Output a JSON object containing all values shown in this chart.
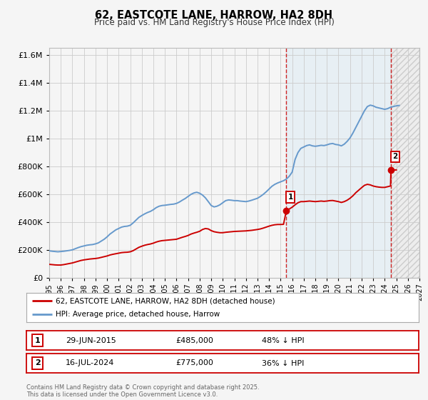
{
  "title": "62, EASTCOTE LANE, HARROW, HA2 8DH",
  "subtitle": "Price paid vs. HM Land Registry's House Price Index (HPI)",
  "ylim": [
    0,
    1650000
  ],
  "xlim_start": 1995,
  "xlim_end": 2027,
  "yticks": [
    0,
    200000,
    400000,
    600000,
    800000,
    1000000,
    1200000,
    1400000,
    1600000
  ],
  "ytick_labels": [
    "£0",
    "£200K",
    "£400K",
    "£600K",
    "£800K",
    "£1M",
    "£1.2M",
    "£1.4M",
    "£1.6M"
  ],
  "xticks": [
    1995,
    1996,
    1997,
    1998,
    1999,
    2000,
    2001,
    2002,
    2003,
    2004,
    2005,
    2006,
    2007,
    2008,
    2009,
    2010,
    2011,
    2012,
    2013,
    2014,
    2015,
    2016,
    2017,
    2018,
    2019,
    2020,
    2021,
    2022,
    2023,
    2024,
    2025,
    2026,
    2027
  ],
  "grid_color": "#cccccc",
  "background_color": "#f5f5f5",
  "sale1_x": 2015.5,
  "sale1_y": 485000,
  "sale2_x": 2024.54,
  "sale2_y": 775000,
  "shade_start": 2015.5,
  "shade_end": 2024.54,
  "hatch_start": 2024.54,
  "hatch_end": 2027,
  "legend_label_red": "62, EASTCOTE LANE, HARROW, HA2 8DH (detached house)",
  "legend_label_blue": "HPI: Average price, detached house, Harrow",
  "note1_label": "1",
  "note1_date": "29-JUN-2015",
  "note1_price": "£485,000",
  "note1_hpi": "48% ↓ HPI",
  "note2_label": "2",
  "note2_date": "16-JUL-2024",
  "note2_price": "£775,000",
  "note2_hpi": "36% ↓ HPI",
  "footer": "Contains HM Land Registry data © Crown copyright and database right 2025.\nThis data is licensed under the Open Government Licence v3.0.",
  "red_color": "#cc0000",
  "blue_color": "#6699cc",
  "hpi_data": [
    [
      1995.0,
      195000
    ],
    [
      1995.25,
      192000
    ],
    [
      1995.5,
      190000
    ],
    [
      1995.75,
      188000
    ],
    [
      1996.0,
      190000
    ],
    [
      1996.25,
      192000
    ],
    [
      1996.5,
      195000
    ],
    [
      1996.75,
      198000
    ],
    [
      1997.0,
      202000
    ],
    [
      1997.25,
      210000
    ],
    [
      1997.5,
      218000
    ],
    [
      1997.75,
      225000
    ],
    [
      1998.0,
      230000
    ],
    [
      1998.25,
      235000
    ],
    [
      1998.5,
      238000
    ],
    [
      1998.75,
      240000
    ],
    [
      1999.0,
      245000
    ],
    [
      1999.25,
      252000
    ],
    [
      1999.5,
      265000
    ],
    [
      1999.75,
      278000
    ],
    [
      2000.0,
      295000
    ],
    [
      2000.25,
      315000
    ],
    [
      2000.5,
      330000
    ],
    [
      2000.75,
      345000
    ],
    [
      2001.0,
      355000
    ],
    [
      2001.25,
      365000
    ],
    [
      2001.5,
      370000
    ],
    [
      2001.75,
      372000
    ],
    [
      2002.0,
      378000
    ],
    [
      2002.25,
      395000
    ],
    [
      2002.5,
      415000
    ],
    [
      2002.75,
      435000
    ],
    [
      2003.0,
      448000
    ],
    [
      2003.25,
      460000
    ],
    [
      2003.5,
      470000
    ],
    [
      2003.75,
      478000
    ],
    [
      2004.0,
      490000
    ],
    [
      2004.25,
      505000
    ],
    [
      2004.5,
      515000
    ],
    [
      2004.75,
      520000
    ],
    [
      2005.0,
      522000
    ],
    [
      2005.25,
      525000
    ],
    [
      2005.5,
      528000
    ],
    [
      2005.75,
      530000
    ],
    [
      2006.0,
      535000
    ],
    [
      2006.25,
      545000
    ],
    [
      2006.5,
      558000
    ],
    [
      2006.75,
      570000
    ],
    [
      2007.0,
      585000
    ],
    [
      2007.25,
      600000
    ],
    [
      2007.5,
      610000
    ],
    [
      2007.75,
      615000
    ],
    [
      2008.0,
      608000
    ],
    [
      2008.25,
      595000
    ],
    [
      2008.5,
      575000
    ],
    [
      2008.75,
      548000
    ],
    [
      2009.0,
      520000
    ],
    [
      2009.25,
      510000
    ],
    [
      2009.5,
      515000
    ],
    [
      2009.75,
      525000
    ],
    [
      2010.0,
      540000
    ],
    [
      2010.25,
      555000
    ],
    [
      2010.5,
      560000
    ],
    [
      2010.75,
      558000
    ],
    [
      2011.0,
      555000
    ],
    [
      2011.25,
      555000
    ],
    [
      2011.5,
      552000
    ],
    [
      2011.75,
      550000
    ],
    [
      2012.0,
      548000
    ],
    [
      2012.25,
      552000
    ],
    [
      2012.5,
      558000
    ],
    [
      2012.75,
      565000
    ],
    [
      2013.0,
      572000
    ],
    [
      2013.25,
      585000
    ],
    [
      2013.5,
      600000
    ],
    [
      2013.75,
      618000
    ],
    [
      2014.0,
      638000
    ],
    [
      2014.25,
      658000
    ],
    [
      2014.5,
      672000
    ],
    [
      2014.75,
      682000
    ],
    [
      2015.0,
      690000
    ],
    [
      2015.25,
      698000
    ],
    [
      2015.5,
      710000
    ],
    [
      2015.75,
      730000
    ],
    [
      2016.0,
      760000
    ],
    [
      2016.25,
      850000
    ],
    [
      2016.5,
      900000
    ],
    [
      2016.75,
      930000
    ],
    [
      2017.0,
      940000
    ],
    [
      2017.25,
      950000
    ],
    [
      2017.5,
      955000
    ],
    [
      2017.75,
      948000
    ],
    [
      2018.0,
      945000
    ],
    [
      2018.25,
      948000
    ],
    [
      2018.5,
      952000
    ],
    [
      2018.75,
      950000
    ],
    [
      2019.0,
      955000
    ],
    [
      2019.25,
      962000
    ],
    [
      2019.5,
      965000
    ],
    [
      2019.75,
      958000
    ],
    [
      2020.0,
      955000
    ],
    [
      2020.25,
      948000
    ],
    [
      2020.5,
      960000
    ],
    [
      2020.75,
      980000
    ],
    [
      2021.0,
      1005000
    ],
    [
      2021.25,
      1040000
    ],
    [
      2021.5,
      1080000
    ],
    [
      2021.75,
      1120000
    ],
    [
      2022.0,
      1160000
    ],
    [
      2022.25,
      1200000
    ],
    [
      2022.5,
      1230000
    ],
    [
      2022.75,
      1240000
    ],
    [
      2023.0,
      1235000
    ],
    [
      2023.25,
      1225000
    ],
    [
      2023.5,
      1220000
    ],
    [
      2023.75,
      1215000
    ],
    [
      2024.0,
      1210000
    ],
    [
      2024.25,
      1215000
    ],
    [
      2024.5,
      1225000
    ],
    [
      2024.75,
      1230000
    ],
    [
      2025.0,
      1235000
    ],
    [
      2025.25,
      1238000
    ]
  ],
  "price_data": [
    [
      1995.0,
      98000
    ],
    [
      1995.25,
      96000
    ],
    [
      1995.5,
      94000
    ],
    [
      1995.75,
      93000
    ],
    [
      1996.0,
      93000
    ],
    [
      1996.25,
      96000
    ],
    [
      1996.5,
      100000
    ],
    [
      1996.75,
      104000
    ],
    [
      1997.0,
      108000
    ],
    [
      1997.25,
      114000
    ],
    [
      1997.5,
      120000
    ],
    [
      1997.75,
      126000
    ],
    [
      1998.0,
      130000
    ],
    [
      1998.25,
      133000
    ],
    [
      1998.5,
      136000
    ],
    [
      1998.75,
      138000
    ],
    [
      1999.0,
      140000
    ],
    [
      1999.25,
      143000
    ],
    [
      1999.5,
      148000
    ],
    [
      1999.75,
      153000
    ],
    [
      2000.0,
      158000
    ],
    [
      2000.25,
      165000
    ],
    [
      2000.5,
      170000
    ],
    [
      2000.75,
      174000
    ],
    [
      2001.0,
      178000
    ],
    [
      2001.25,
      182000
    ],
    [
      2001.5,
      184000
    ],
    [
      2001.75,
      185000
    ],
    [
      2002.0,
      188000
    ],
    [
      2002.25,
      196000
    ],
    [
      2002.5,
      208000
    ],
    [
      2002.75,
      220000
    ],
    [
      2003.0,
      228000
    ],
    [
      2003.25,
      235000
    ],
    [
      2003.5,
      240000
    ],
    [
      2003.75,
      244000
    ],
    [
      2004.0,
      250000
    ],
    [
      2004.25,
      258000
    ],
    [
      2004.5,
      264000
    ],
    [
      2004.75,
      268000
    ],
    [
      2005.0,
      270000
    ],
    [
      2005.25,
      272000
    ],
    [
      2005.5,
      274000
    ],
    [
      2005.75,
      276000
    ],
    [
      2006.0,
      278000
    ],
    [
      2006.25,
      285000
    ],
    [
      2006.5,
      292000
    ],
    [
      2006.75,
      298000
    ],
    [
      2007.0,
      305000
    ],
    [
      2007.25,
      315000
    ],
    [
      2007.5,
      322000
    ],
    [
      2007.75,
      328000
    ],
    [
      2008.0,
      335000
    ],
    [
      2008.25,
      348000
    ],
    [
      2008.5,
      355000
    ],
    [
      2008.75,
      352000
    ],
    [
      2009.0,
      340000
    ],
    [
      2009.25,
      332000
    ],
    [
      2009.5,
      328000
    ],
    [
      2009.75,
      325000
    ],
    [
      2010.0,
      325000
    ],
    [
      2010.25,
      328000
    ],
    [
      2010.5,
      330000
    ],
    [
      2010.75,
      332000
    ],
    [
      2011.0,
      334000
    ],
    [
      2011.25,
      335000
    ],
    [
      2011.5,
      336000
    ],
    [
      2011.75,
      337000
    ],
    [
      2012.0,
      338000
    ],
    [
      2012.25,
      340000
    ],
    [
      2012.5,
      342000
    ],
    [
      2012.75,
      345000
    ],
    [
      2013.0,
      348000
    ],
    [
      2013.25,
      352000
    ],
    [
      2013.5,
      358000
    ],
    [
      2013.75,
      365000
    ],
    [
      2014.0,
      372000
    ],
    [
      2014.25,
      378000
    ],
    [
      2014.5,
      382000
    ],
    [
      2014.75,
      384000
    ],
    [
      2015.0,
      384000
    ],
    [
      2015.25,
      385000
    ],
    [
      2015.5,
      485000
    ],
    [
      2015.75,
      495000
    ],
    [
      2016.0,
      508000
    ],
    [
      2016.25,
      525000
    ],
    [
      2016.5,
      540000
    ],
    [
      2016.75,
      548000
    ],
    [
      2017.0,
      548000
    ],
    [
      2017.25,
      550000
    ],
    [
      2017.5,
      552000
    ],
    [
      2017.75,
      550000
    ],
    [
      2018.0,
      548000
    ],
    [
      2018.25,
      550000
    ],
    [
      2018.5,
      552000
    ],
    [
      2018.75,
      550000
    ],
    [
      2019.0,
      552000
    ],
    [
      2019.25,
      555000
    ],
    [
      2019.5,
      556000
    ],
    [
      2019.75,
      552000
    ],
    [
      2020.0,
      548000
    ],
    [
      2020.25,
      542000
    ],
    [
      2020.5,
      548000
    ],
    [
      2020.75,
      558000
    ],
    [
      2021.0,
      572000
    ],
    [
      2021.25,
      590000
    ],
    [
      2021.5,
      612000
    ],
    [
      2021.75,
      630000
    ],
    [
      2022.0,
      648000
    ],
    [
      2022.25,
      665000
    ],
    [
      2022.5,
      672000
    ],
    [
      2022.75,
      668000
    ],
    [
      2023.0,
      660000
    ],
    [
      2023.25,
      655000
    ],
    [
      2023.5,
      652000
    ],
    [
      2023.75,
      650000
    ],
    [
      2024.0,
      650000
    ],
    [
      2024.25,
      655000
    ],
    [
      2024.5,
      660000
    ],
    [
      2024.54,
      775000
    ],
    [
      2024.75,
      775000
    ],
    [
      2025.0,
      775000
    ]
  ]
}
